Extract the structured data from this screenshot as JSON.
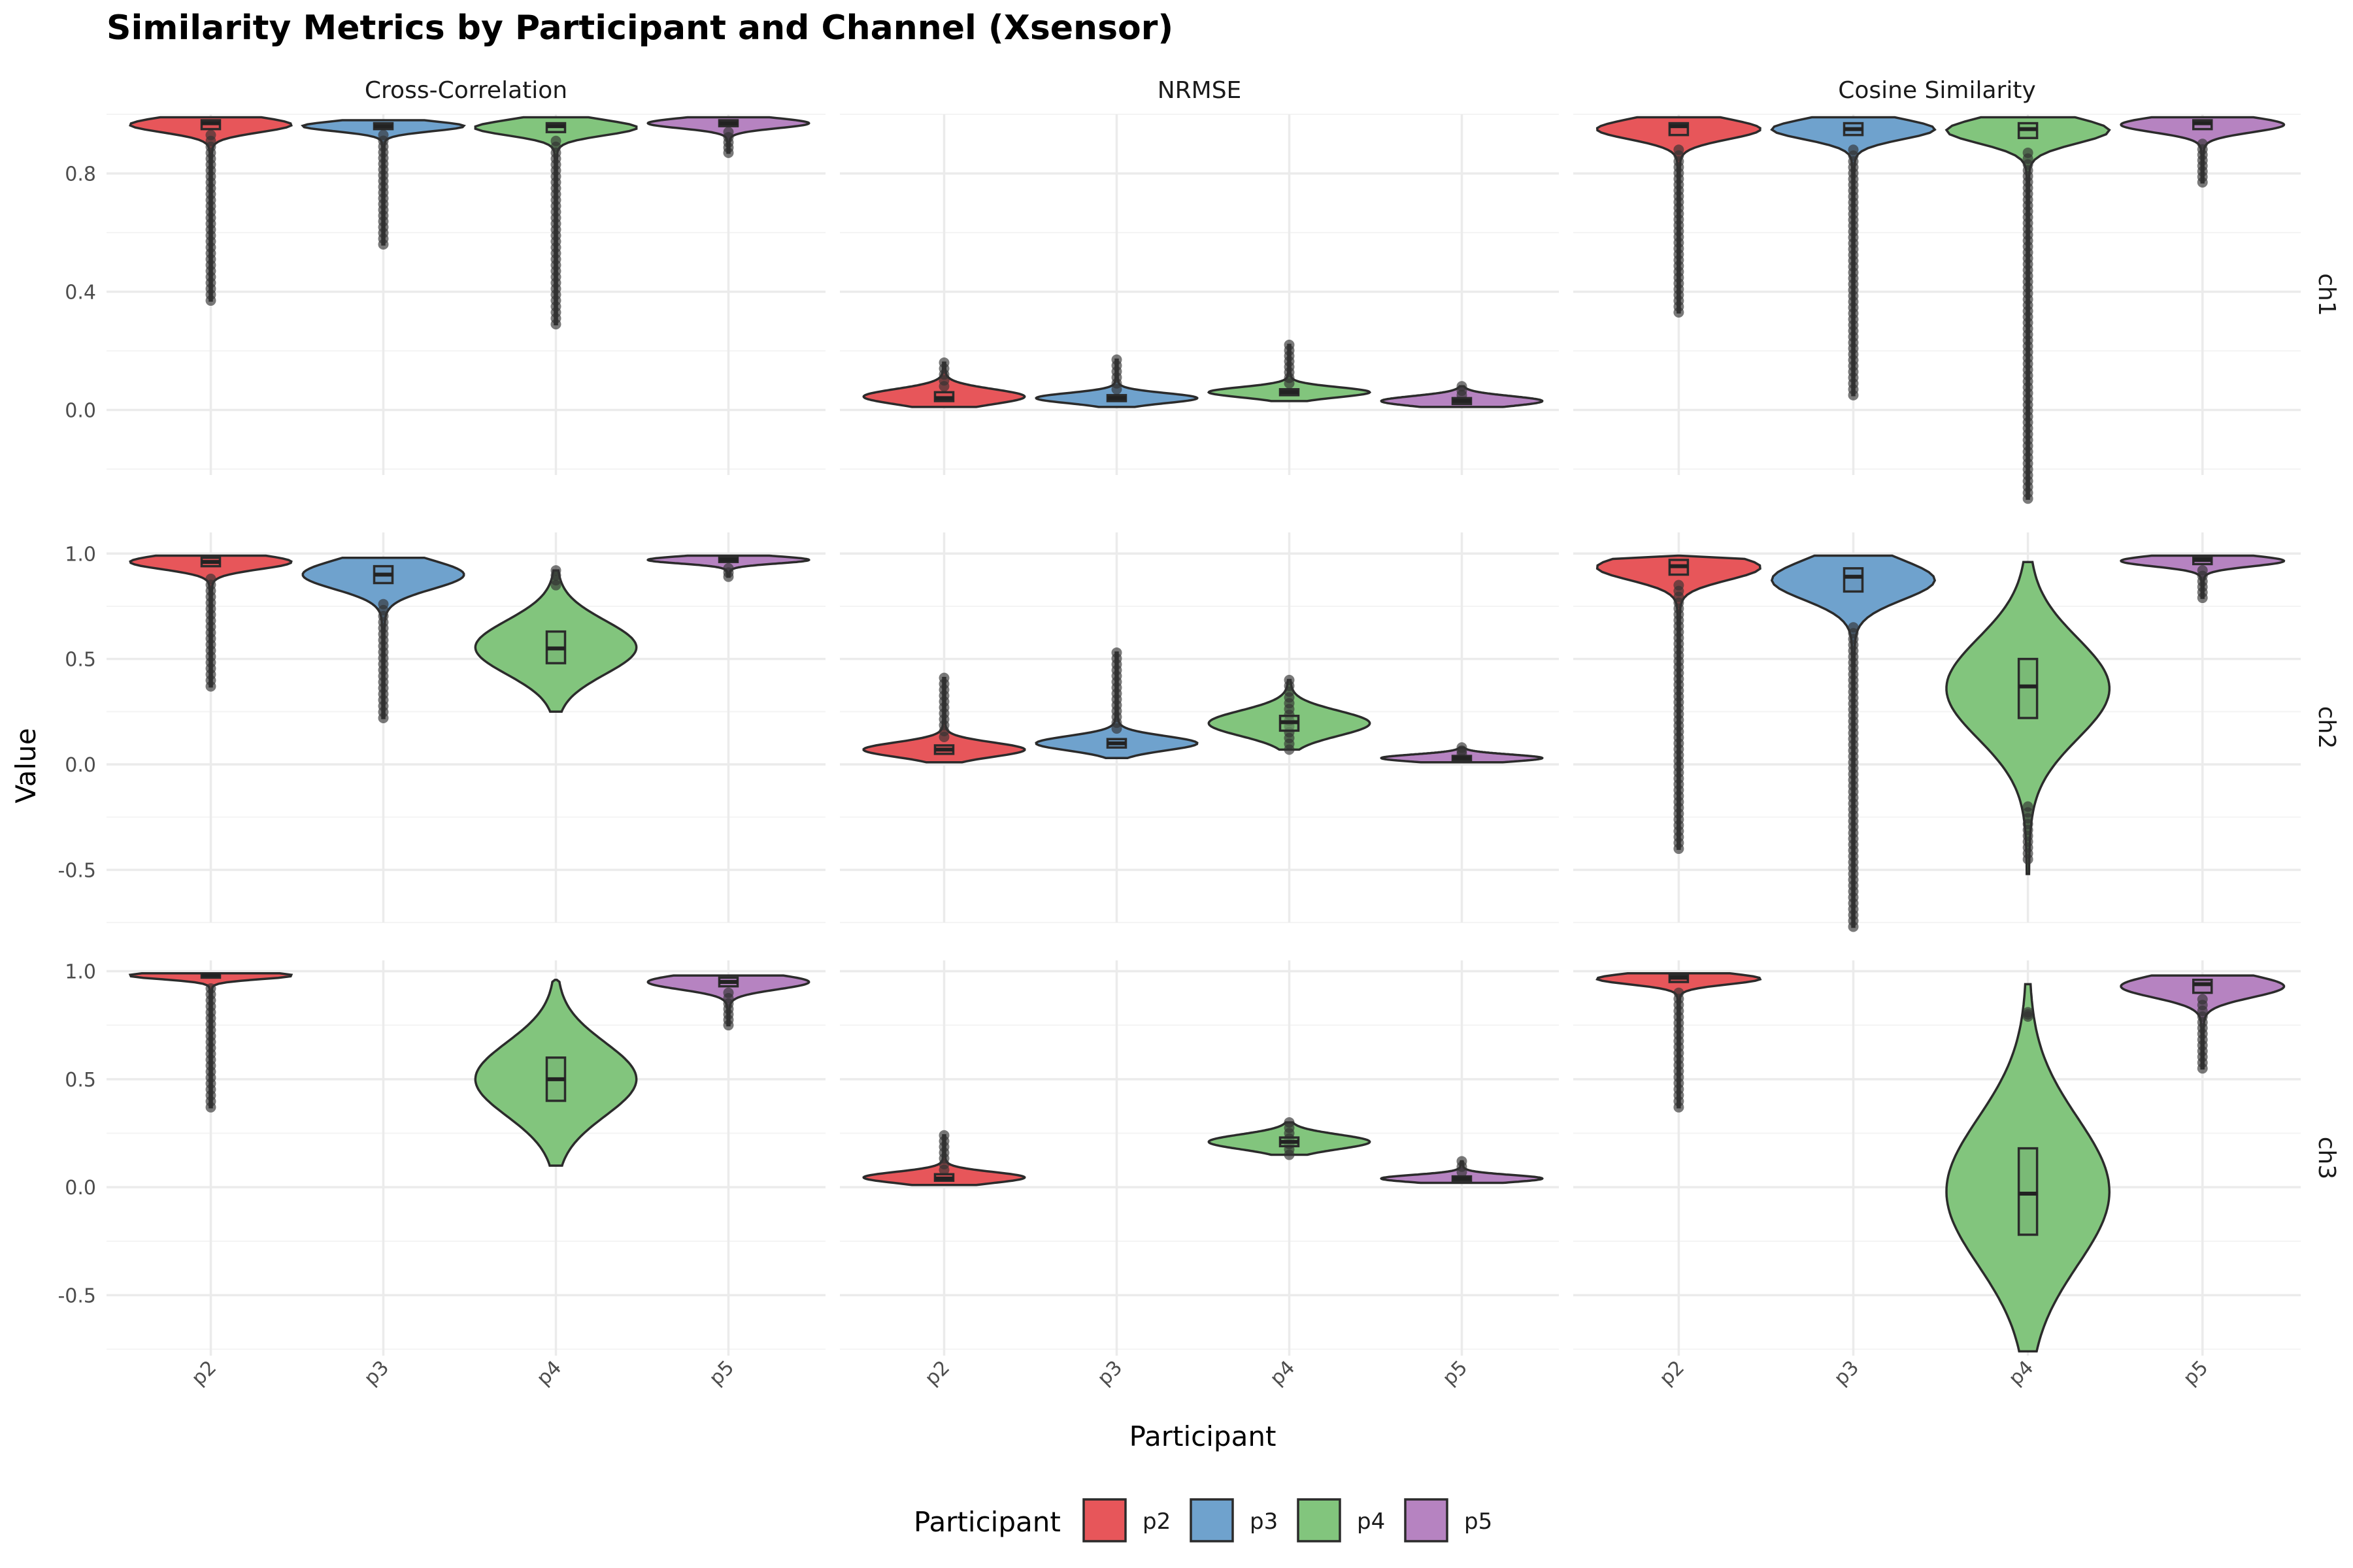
{
  "chart_data": {
    "type": "violin",
    "title": "Similarity Metrics by Participant and Channel (Xsensor)",
    "xlabel": "Participant",
    "ylabel": "Value",
    "legend": {
      "title": "Participant",
      "position": "bottom"
    },
    "grid": true,
    "categories": [
      "p2",
      "p3",
      "p4",
      "p5"
    ],
    "colors": {
      "p2": "#E7565A",
      "p3": "#6FA2CD",
      "p4": "#82C57D",
      "p5": "#B683C1"
    },
    "facet_cols": [
      "Cross-Correlation",
      "NRMSE",
      "Cosine Similarity"
    ],
    "facet_rows": [
      "ch1",
      "ch2",
      "ch3"
    ],
    "row_scales": {
      "ch1": {
        "ylim": [
          -0.22,
          1.0
        ],
        "breaks": [
          0.0,
          0.4,
          0.8
        ],
        "labels": [
          "0.0",
          "0.4",
          "0.8"
        ]
      },
      "ch2": {
        "ylim": [
          -0.75,
          1.1
        ],
        "breaks": [
          -0.5,
          0.0,
          0.5,
          1.0
        ],
        "labels": [
          "-0.5",
          "0.0",
          "0.5",
          "1.0"
        ]
      },
      "ch3": {
        "ylim": [
          -0.78,
          1.05
        ],
        "breaks": [
          -0.5,
          0.0,
          0.5,
          1.0
        ],
        "labels": [
          "-0.5",
          "0.0",
          "0.5",
          "1.0"
        ]
      }
    },
    "panels": [
      {
        "metric": "Cross-Correlation",
        "channel": "ch1",
        "groups": [
          {
            "participant": "p2",
            "min": 0.37,
            "q1": 0.95,
            "median": 0.97,
            "q3": 0.98,
            "max": 0.99,
            "outlier_range": [
              0.37,
              0.93
            ]
          },
          {
            "participant": "p3",
            "min": 0.56,
            "q1": 0.95,
            "median": 0.96,
            "q3": 0.97,
            "max": 0.98,
            "outlier_range": [
              0.56,
              0.93
            ]
          },
          {
            "participant": "p4",
            "min": 0.29,
            "q1": 0.94,
            "median": 0.96,
            "q3": 0.97,
            "max": 0.99,
            "outlier_range": [
              0.29,
              0.91
            ]
          },
          {
            "participant": "p5",
            "min": 0.87,
            "q1": 0.96,
            "median": 0.97,
            "q3": 0.98,
            "max": 0.99,
            "outlier_range": [
              0.87,
              0.94
            ]
          }
        ]
      },
      {
        "metric": "NRMSE",
        "channel": "ch1",
        "groups": [
          {
            "participant": "p2",
            "min": 0.01,
            "q1": 0.03,
            "median": 0.04,
            "q3": 0.06,
            "max": 0.16,
            "outlier_range": [
              0.08,
              0.16
            ]
          },
          {
            "participant": "p3",
            "min": 0.01,
            "q1": 0.03,
            "median": 0.04,
            "q3": 0.05,
            "max": 0.17,
            "outlier_range": [
              0.07,
              0.17
            ]
          },
          {
            "participant": "p4",
            "min": 0.03,
            "q1": 0.05,
            "median": 0.06,
            "q3": 0.07,
            "max": 0.22,
            "outlier_range": [
              0.09,
              0.22
            ]
          },
          {
            "participant": "p5",
            "min": 0.01,
            "q1": 0.02,
            "median": 0.03,
            "q3": 0.04,
            "max": 0.08,
            "outlier_range": [
              0.05,
              0.08
            ]
          }
        ]
      },
      {
        "metric": "Cosine Similarity",
        "channel": "ch1",
        "groups": [
          {
            "participant": "p2",
            "min": 0.33,
            "q1": 0.93,
            "median": 0.96,
            "q3": 0.97,
            "max": 0.99,
            "outlier_range": [
              0.33,
              0.88
            ]
          },
          {
            "participant": "p3",
            "min": 0.05,
            "q1": 0.93,
            "median": 0.95,
            "q3": 0.97,
            "max": 0.99,
            "outlier_range": [
              0.05,
              0.88
            ]
          },
          {
            "participant": "p4",
            "min": -0.3,
            "q1": 0.92,
            "median": 0.95,
            "q3": 0.97,
            "max": 0.99,
            "outlier_range": [
              -0.3,
              0.87
            ]
          },
          {
            "participant": "p5",
            "min": 0.77,
            "q1": 0.95,
            "median": 0.97,
            "q3": 0.98,
            "max": 0.99,
            "outlier_range": [
              0.77,
              0.9
            ]
          }
        ]
      },
      {
        "metric": "Cross-Correlation",
        "channel": "ch2",
        "groups": [
          {
            "participant": "p2",
            "min": 0.37,
            "q1": 0.94,
            "median": 0.96,
            "q3": 0.98,
            "max": 0.99,
            "outlier_range": [
              0.37,
              0.88
            ]
          },
          {
            "participant": "p3",
            "min": 0.22,
            "q1": 0.86,
            "median": 0.9,
            "q3": 0.94,
            "max": 0.98,
            "outlier_range": [
              0.22,
              0.76
            ]
          },
          {
            "participant": "p4",
            "min": 0.25,
            "q1": 0.48,
            "median": 0.55,
            "q3": 0.63,
            "max": 0.92,
            "outlier_range": [
              0.85,
              0.92
            ]
          },
          {
            "participant": "p5",
            "min": 0.89,
            "q1": 0.96,
            "median": 0.97,
            "q3": 0.98,
            "max": 0.99,
            "outlier_range": [
              0.89,
              0.93
            ]
          }
        ]
      },
      {
        "metric": "NRMSE",
        "channel": "ch2",
        "groups": [
          {
            "participant": "p2",
            "min": 0.01,
            "q1": 0.05,
            "median": 0.07,
            "q3": 0.09,
            "max": 0.41,
            "outlier_range": [
              0.13,
              0.41
            ]
          },
          {
            "participant": "p3",
            "min": 0.03,
            "q1": 0.08,
            "median": 0.1,
            "q3": 0.12,
            "max": 0.53,
            "outlier_range": [
              0.17,
              0.53
            ]
          },
          {
            "participant": "p4",
            "min": 0.07,
            "q1": 0.16,
            "median": 0.2,
            "q3": 0.23,
            "max": 0.4,
            "outlier_range": [
              0.07,
              0.4
            ]
          },
          {
            "participant": "p5",
            "min": 0.01,
            "q1": 0.02,
            "median": 0.03,
            "q3": 0.04,
            "max": 0.08,
            "outlier_range": [
              0.05,
              0.08
            ]
          }
        ]
      },
      {
        "metric": "Cosine Similarity",
        "channel": "ch2",
        "groups": [
          {
            "participant": "p2",
            "min": -0.4,
            "q1": 0.9,
            "median": 0.94,
            "q3": 0.97,
            "max": 0.99,
            "outlier_range": [
              -0.4,
              0.85
            ]
          },
          {
            "participant": "p3",
            "min": -0.77,
            "q1": 0.82,
            "median": 0.89,
            "q3": 0.93,
            "max": 0.99,
            "outlier_range": [
              -0.77,
              0.65
            ]
          },
          {
            "participant": "p4",
            "min": -0.52,
            "q1": 0.22,
            "median": 0.37,
            "q3": 0.5,
            "max": 0.96,
            "outlier_range": [
              -0.45,
              -0.2
            ]
          },
          {
            "participant": "p5",
            "min": 0.79,
            "q1": 0.95,
            "median": 0.97,
            "q3": 0.98,
            "max": 0.99,
            "outlier_range": [
              0.79,
              0.92
            ]
          }
        ]
      },
      {
        "metric": "Cross-Correlation",
        "channel": "ch3",
        "groups": [
          {
            "participant": "p2",
            "min": 0.37,
            "q1": 0.97,
            "median": 0.98,
            "q3": 0.99,
            "max": 0.99,
            "outlier_range": [
              0.37,
              0.92
            ]
          },
          {
            "participant": "p4",
            "min": 0.1,
            "q1": 0.4,
            "median": 0.5,
            "q3": 0.6,
            "max": 0.96,
            "outlier_range": []
          },
          {
            "participant": "p5",
            "min": 0.75,
            "q1": 0.93,
            "median": 0.95,
            "q3": 0.97,
            "max": 0.98,
            "outlier_range": [
              0.75,
              0.9
            ]
          }
        ]
      },
      {
        "metric": "NRMSE",
        "channel": "ch3",
        "groups": [
          {
            "participant": "p2",
            "min": 0.01,
            "q1": 0.03,
            "median": 0.04,
            "q3": 0.06,
            "max": 0.24,
            "outlier_range": [
              0.08,
              0.24
            ]
          },
          {
            "participant": "p4",
            "min": 0.15,
            "q1": 0.19,
            "median": 0.21,
            "q3": 0.23,
            "max": 0.3,
            "outlier_range": [
              0.15,
              0.3
            ]
          },
          {
            "participant": "p5",
            "min": 0.02,
            "q1": 0.03,
            "median": 0.04,
            "q3": 0.05,
            "max": 0.12,
            "outlier_range": [
              0.07,
              0.12
            ]
          }
        ]
      },
      {
        "metric": "Cosine Similarity",
        "channel": "ch3",
        "groups": [
          {
            "participant": "p2",
            "min": 0.37,
            "q1": 0.95,
            "median": 0.97,
            "q3": 0.98,
            "max": 0.99,
            "outlier_range": [
              0.37,
              0.9
            ]
          },
          {
            "participant": "p4",
            "min": -0.76,
            "q1": -0.22,
            "median": -0.03,
            "q3": 0.18,
            "max": 0.94,
            "outlier_range": [
              0.79,
              0.81
            ]
          },
          {
            "participant": "p5",
            "min": 0.55,
            "q1": 0.9,
            "median": 0.94,
            "q3": 0.96,
            "max": 0.98,
            "outlier_range": [
              0.55,
              0.87
            ]
          }
        ]
      }
    ]
  }
}
